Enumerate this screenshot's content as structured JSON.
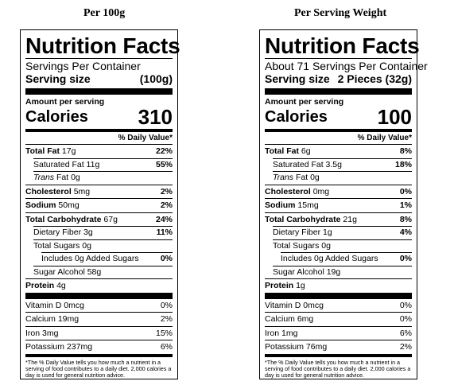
{
  "columns": [
    {
      "heading": "Per 100g",
      "title": "Nutrition Facts",
      "servings": "Servings Per Container",
      "serving_size_label": "Serving size",
      "serving_size_value": "(100g)",
      "amount_per_serving": "Amount per serving",
      "calories_label": "Calories",
      "calories_value": "310",
      "dv_header": "% Daily Value*",
      "total_fat": {
        "label": "Total Fat",
        "amount": "17g",
        "dv": "22%"
      },
      "saturated_fat": {
        "label": "Saturated Fat 11g",
        "dv": "55%"
      },
      "trans_fat": {
        "label_italic": "Trans",
        "label_rest": " Fat 0g"
      },
      "cholesterol": {
        "label": "Cholesterol",
        "amount": "5mg",
        "dv": "2%"
      },
      "sodium": {
        "label": "Sodium",
        "amount": "50mg",
        "dv": "2%"
      },
      "total_carb": {
        "label": "Total Carbohydrate",
        "amount": "67g",
        "dv": "24%"
      },
      "fiber": {
        "label": "Dietary Fiber 3g",
        "dv": "11%"
      },
      "total_sugars": {
        "label": "Total Sugars 0g"
      },
      "added_sugars": {
        "label": "Includes 0g Added Sugars",
        "dv": "0%"
      },
      "sugar_alcohol": {
        "label": "Sugar Alcohol 58g"
      },
      "protein": {
        "label": "Protein",
        "amount": "4g"
      },
      "vitamin_d": {
        "label": "Vitamin D 0mcg",
        "dv": "0%"
      },
      "calcium": {
        "label": "Calcium 19mg",
        "dv": "2%"
      },
      "iron": {
        "label": "Iron 3mg",
        "dv": "15%"
      },
      "potassium": {
        "label": "Potassium 237mg",
        "dv": "6%"
      },
      "footnote": "*The % Daily Value tells you how much a nutrient in a serving of food contributes to a daily diet. 2,000 calories a day is used for general nutrition advice."
    },
    {
      "heading": "Per Serving Weight",
      "title": "Nutrition Facts",
      "servings": "About 71 Servings Per Container",
      "serving_size_label": "Serving size",
      "serving_size_value": "2 Pieces (32g)",
      "amount_per_serving": "Amount per serving",
      "calories_label": "Calories",
      "calories_value": "100",
      "dv_header": "% Daily Value*",
      "total_fat": {
        "label": "Total Fat",
        "amount": "6g",
        "dv": "8%"
      },
      "saturated_fat": {
        "label": "Saturated Fat 3.5g",
        "dv": "18%"
      },
      "trans_fat": {
        "label_italic": "Trans",
        "label_rest": " Fat 0g"
      },
      "cholesterol": {
        "label": "Cholesterol",
        "amount": "0mg",
        "dv": "0%"
      },
      "sodium": {
        "label": "Sodium",
        "amount": "15mg",
        "dv": "1%"
      },
      "total_carb": {
        "label": "Total Carbohydrate",
        "amount": "21g",
        "dv": "8%"
      },
      "fiber": {
        "label": "Dietary Fiber 1g",
        "dv": "4%"
      },
      "total_sugars": {
        "label": "Total Sugars 0g"
      },
      "added_sugars": {
        "label": "Includes 0g Added Sugars",
        "dv": "0%"
      },
      "sugar_alcohol": {
        "label": "Sugar Alcohol 19g"
      },
      "protein": {
        "label": "Protein",
        "amount": "1g"
      },
      "vitamin_d": {
        "label": "Vitamin D 0mcg",
        "dv": "0%"
      },
      "calcium": {
        "label": "Calcium 6mg",
        "dv": "0%"
      },
      "iron": {
        "label": "Iron 1mg",
        "dv": "6%"
      },
      "potassium": {
        "label": "Potassium 76mg",
        "dv": "2%"
      },
      "footnote": "*The % Daily Value tells you how much a nutrient in a serving of food contributes to a daily diet. 2,000 calories a day is used for general nutrition advice."
    }
  ]
}
